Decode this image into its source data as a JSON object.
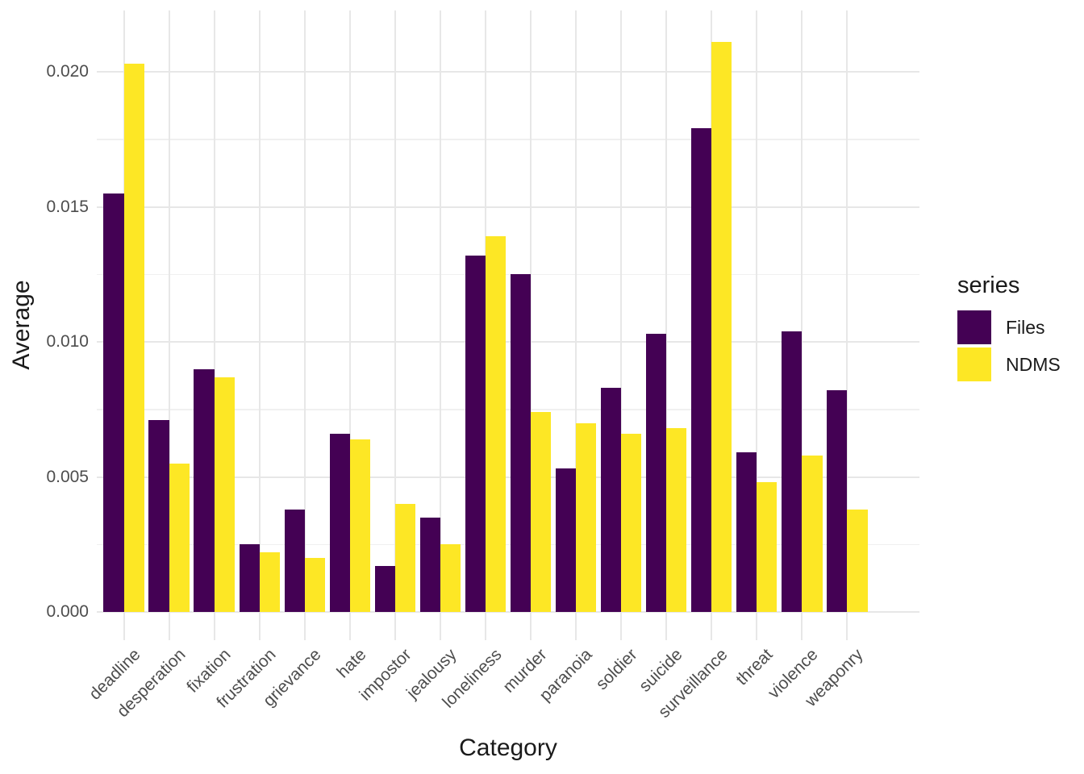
{
  "chart_data": {
    "type": "bar",
    "title": "",
    "xlabel": "Category",
    "ylabel": "Average",
    "categories": [
      "deadline",
      "desperation",
      "fixation",
      "frustration",
      "grievance",
      "hate",
      "impostor",
      "jealousy",
      "loneliness",
      "murder",
      "paranoia",
      "soldier",
      "suicide",
      "surveillance",
      "threat",
      "violence",
      "weaponry"
    ],
    "series": [
      {
        "name": "Files",
        "color": "#440154",
        "values": [
          0.0155,
          0.0071,
          0.009,
          0.0025,
          0.0038,
          0.0066,
          0.0017,
          0.0035,
          0.0132,
          0.0125,
          0.0053,
          0.0083,
          0.0103,
          0.0179,
          0.0059,
          0.0104,
          0.0082
        ]
      },
      {
        "name": "NDMS",
        "color": "#FDE725",
        "values": [
          0.0203,
          0.0055,
          0.0087,
          0.0022,
          0.002,
          0.0064,
          0.004,
          0.0025,
          0.0139,
          0.0074,
          0.007,
          0.0066,
          0.0068,
          0.0211,
          0.0048,
          0.0058,
          0.0038
        ]
      }
    ],
    "ylim": [
      0,
      0.02
    ],
    "y_ticks": [
      "0.000",
      "0.005",
      "0.010",
      "0.015",
      "0.020"
    ],
    "y_tick_values": [
      0,
      0.005,
      0.01,
      0.015,
      0.02
    ],
    "y_minor_values": [
      0.0025,
      0.0075,
      0.0125,
      0.0175
    ],
    "grid": true,
    "legend": {
      "title": "series",
      "position": "right",
      "entries": [
        "Files",
        "NDMS"
      ]
    }
  },
  "colors": {
    "background": "#FFFFFF",
    "grid_major": "#E7E7E7",
    "grid_minor": "#F0F0F0",
    "tick_label": "#4D4D4D",
    "axis_title": "#1A1A1A"
  }
}
